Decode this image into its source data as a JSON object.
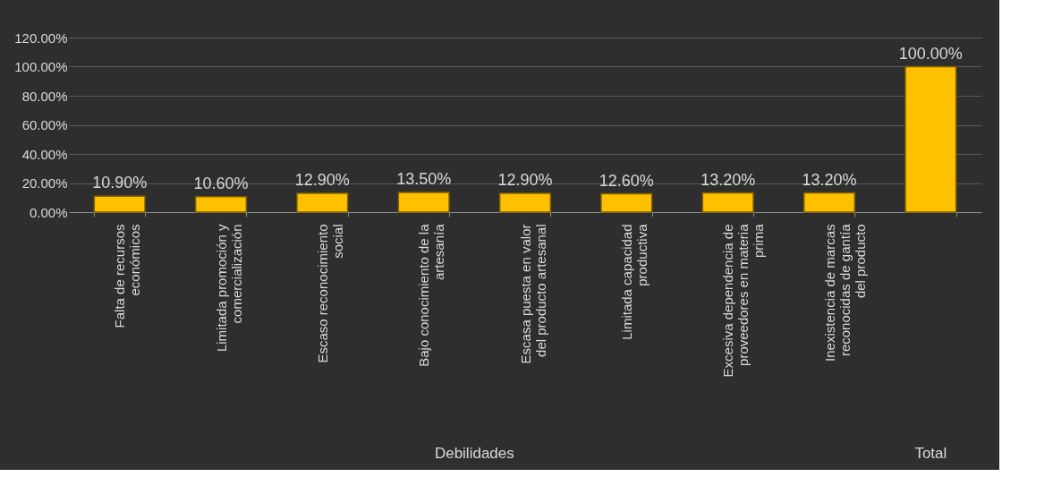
{
  "chart_data": {
    "type": "bar",
    "categories": [
      "Falta de recursos económicos",
      "Limitada promoción y comercialización",
      "Escaso reconocimiento social",
      "Bajo conocimiento de la artesanía",
      "Escasa puesta en valor del producto artesanal",
      "Limitada capacidad productiva",
      "Excesiva dependencia de proveedores en materia prima",
      "Inexistencia de marcas reconocidas de gantía del producto",
      null
    ],
    "values": [
      10.9,
      10.6,
      12.9,
      13.5,
      12.9,
      12.6,
      13.2,
      13.2,
      100
    ],
    "value_labels": [
      "10.90%",
      "10.60%",
      "12.90%",
      "13.50%",
      "12.90%",
      "12.60%",
      "13.20%",
      "13.20%",
      "100.00%"
    ],
    "color": "#ffc000",
    "ylim": [
      0,
      120
    ],
    "yticks": [
      {
        "value": 0,
        "label": "0.00%"
      },
      {
        "value": 20,
        "label": "20.00%"
      },
      {
        "value": 40,
        "label": "40.00%"
      },
      {
        "value": 60,
        "label": "60.00%"
      },
      {
        "value": 80,
        "label": "80.00%"
      },
      {
        "value": 100,
        "label": "100.00%"
      },
      {
        "value": 120,
        "label": "120.00%"
      }
    ],
    "grid": "y",
    "annotations": [
      "Debilidades",
      "Total"
    ]
  }
}
